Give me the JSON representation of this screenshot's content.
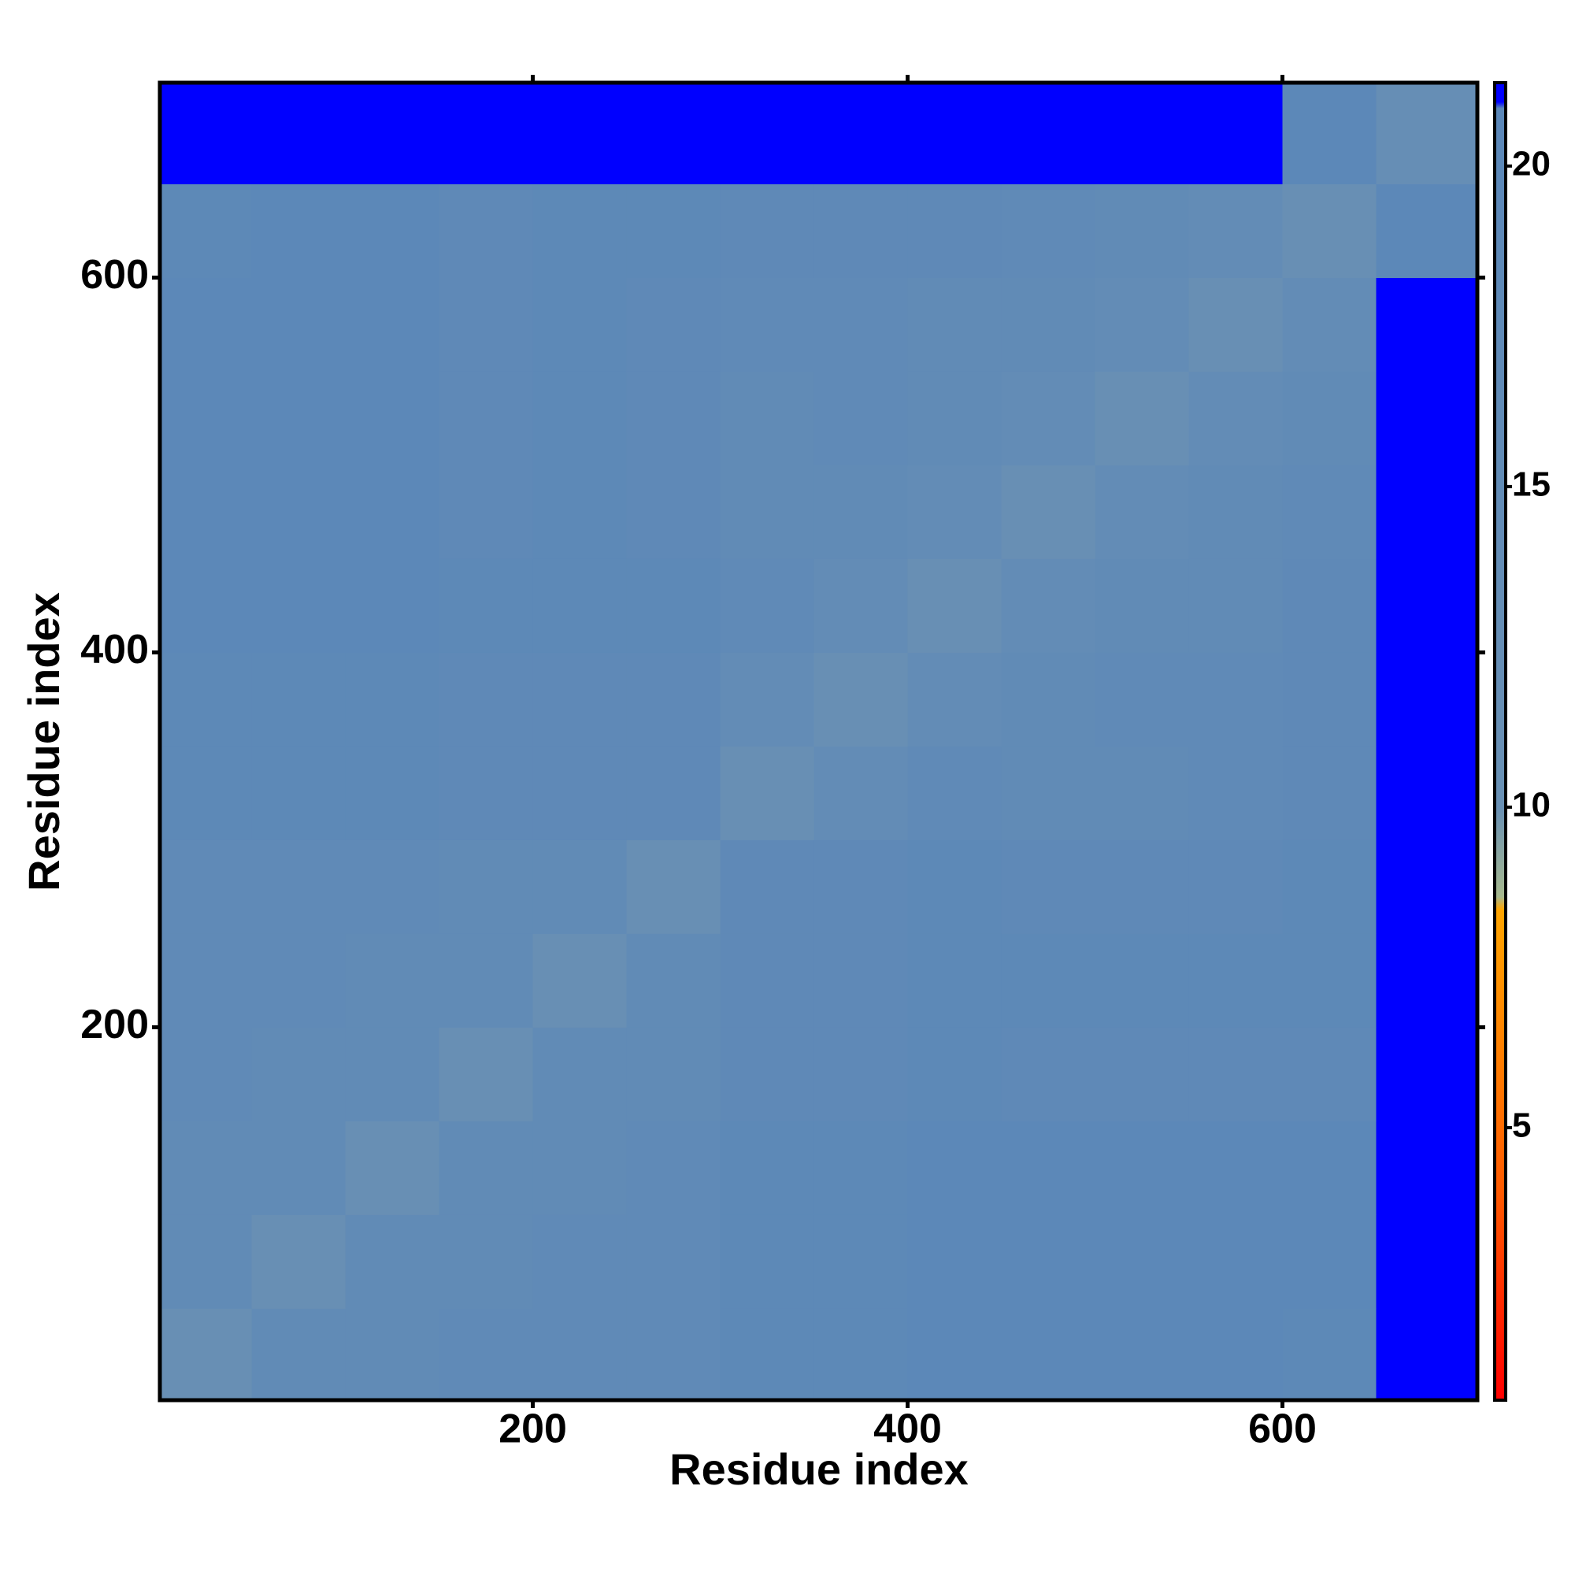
{
  "chart_data": {
    "type": "heatmap",
    "xlabel": "Residue index",
    "ylabel": "Residue index",
    "xlim": [
      1,
      704
    ],
    "ylim": [
      1,
      704
    ],
    "xticks": [
      200,
      400,
      600
    ],
    "yticks": [
      200,
      400,
      600
    ],
    "x_edges": [
      1,
      50,
      100,
      150,
      200,
      250,
      300,
      350,
      400,
      450,
      500,
      550,
      600,
      650,
      704
    ],
    "y_edges": [
      1,
      50,
      100,
      150,
      200,
      250,
      300,
      350,
      400,
      450,
      500,
      550,
      600,
      650,
      704
    ],
    "z": [
      [
        11,
        16,
        16,
        17,
        17,
        17,
        19,
        19,
        20,
        20,
        20,
        20,
        19,
        21
      ],
      [
        16,
        11,
        16,
        16,
        17,
        17,
        19,
        19,
        20,
        20,
        20,
        20,
        20,
        21
      ],
      [
        16,
        16,
        11,
        16,
        16,
        17,
        19,
        19,
        20,
        20,
        20,
        20,
        20,
        21
      ],
      [
        17,
        16,
        16,
        11,
        16,
        16,
        18,
        18,
        19,
        18,
        18,
        18,
        18,
        21
      ],
      [
        17,
        17,
        16,
        16,
        11,
        16,
        18,
        18,
        19,
        19,
        19,
        19,
        19,
        21
      ],
      [
        17,
        17,
        17,
        16,
        16,
        11,
        18,
        18,
        19,
        18,
        18,
        18,
        19,
        21
      ],
      [
        19,
        19,
        19,
        18,
        18,
        18,
        11,
        15,
        17,
        16,
        16,
        17,
        18,
        21
      ],
      [
        19,
        19,
        19,
        18,
        18,
        18,
        15,
        11,
        15,
        16,
        17,
        17,
        18,
        21
      ],
      [
        20,
        20,
        20,
        19,
        19,
        19,
        17,
        15,
        11,
        15,
        16,
        16,
        18,
        21
      ],
      [
        20,
        20,
        20,
        18,
        19,
        18,
        16,
        16,
        15,
        11,
        15,
        16,
        17,
        21
      ],
      [
        20,
        20,
        20,
        18,
        19,
        18,
        16,
        17,
        16,
        15,
        11,
        15,
        16,
        21
      ],
      [
        20,
        20,
        20,
        18,
        19,
        18,
        17,
        17,
        16,
        16,
        15,
        11,
        15,
        21
      ],
      [
        19,
        20,
        20,
        18,
        19,
        19,
        18,
        18,
        18,
        17,
        16,
        15,
        11,
        20
      ],
      [
        21,
        21,
        21,
        21,
        21,
        21,
        21,
        21,
        21,
        21,
        21,
        21,
        20,
        12
      ]
    ],
    "colorbar": {
      "lim": [
        0.75,
        21.3
      ],
      "ticks": [
        5,
        10,
        15,
        20
      ],
      "colorscale": [
        {
          "value": 0.75,
          "color": "#ff0000"
        },
        {
          "value": 4,
          "color": "#ff5a00"
        },
        {
          "value": 8.4,
          "color": "#ffa500"
        },
        {
          "value": 8.6,
          "color": "#a7b98e"
        },
        {
          "value": 10,
          "color": "#6990b4"
        },
        {
          "value": 20.9,
          "color": "#5b87b8"
        },
        {
          "value": 21,
          "color": "#0000ff"
        },
        {
          "value": 21.3,
          "color": "#0000ff"
        }
      ]
    }
  }
}
